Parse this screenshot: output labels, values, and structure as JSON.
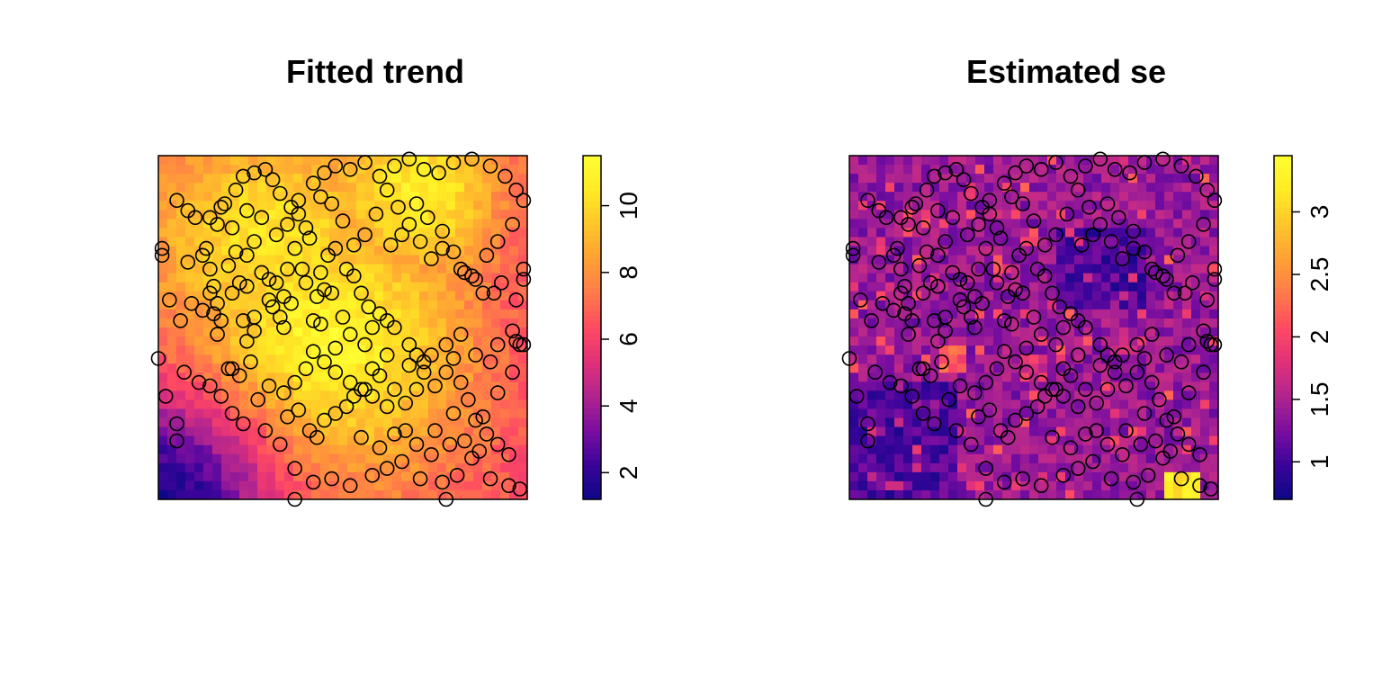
{
  "chart_data": [
    {
      "type": "heatmap",
      "title": "Fitted trend",
      "palette": [
        "#0D0887",
        "#3A049A",
        "#7A0EA0",
        "#B0258F",
        "#E0317A",
        "#FF4A62",
        "#FF7A4A",
        "#FFA035",
        "#FFC52A",
        "#FFEA24",
        "#FFFF33"
      ],
      "grid": false,
      "axes_visible": false,
      "legend": {
        "position": "right",
        "range": [
          1.2,
          11.5
        ],
        "ticks": [
          {
            "value": 2,
            "label": "2"
          },
          {
            "value": 4,
            "label": "4"
          },
          {
            "value": 6,
            "label": "6"
          },
          {
            "value": 8,
            "label": "8"
          },
          {
            "value": 10,
            "label": "10"
          }
        ]
      },
      "surface": {
        "description": "smooth trend: high (yellow) in centre, low (blue) in lower-left corner, moderate magenta on right",
        "peaks": [
          {
            "x": 0.45,
            "y": 0.45,
            "value": 11.2,
            "spread": 0.28
          },
          {
            "x": 0.3,
            "y": 0.75,
            "value": 10.4,
            "spread": 0.25
          },
          {
            "x": 0.7,
            "y": 0.9,
            "value": 10.6,
            "spread": 0.2
          }
        ],
        "base_value": 6.5,
        "low_corner": {
          "x": 0.0,
          "y": 0.0,
          "value": 1.5,
          "spread": 0.22
        },
        "right_edge_value": 6.0
      }
    },
    {
      "type": "heatmap",
      "title": "Estimated se",
      "palette": [
        "#0D0887",
        "#3A049A",
        "#7A0EA0",
        "#B0258F",
        "#E0317A",
        "#FF4A62",
        "#FF7A4A",
        "#FFA035",
        "#FFC52A",
        "#FFEA24",
        "#FFFF33"
      ],
      "grid": false,
      "axes_visible": false,
      "legend": {
        "position": "right",
        "range": [
          0.7,
          3.45
        ],
        "ticks": [
          {
            "value": 1,
            "label": "1"
          },
          {
            "value": 1.5,
            "label": "1.5"
          },
          {
            "value": 2,
            "label": "2"
          },
          {
            "value": 2.5,
            "label": "2.5"
          },
          {
            "value": 3,
            "label": "3"
          }
        ]
      },
      "surface": {
        "description": "mostly blue/purple (1-1.6) with scattered magenta patches near 2, yellow patch bottom-right",
        "base_value": 1.4,
        "hot_spots": [
          {
            "x": 0.9,
            "y": 0.03,
            "value": 3.4
          },
          {
            "x": 0.28,
            "y": 0.42,
            "value": 2.4
          },
          {
            "x": 0.5,
            "y": 0.38,
            "value": 2.0
          },
          {
            "x": 0.75,
            "y": 0.45,
            "value": 1.9
          }
        ]
      }
    }
  ],
  "points": [
    [
      0.01,
      0.73
    ],
    [
      0.01,
      0.71
    ],
    [
      0.0,
      0.41
    ],
    [
      0.02,
      0.3
    ],
    [
      0.05,
      0.22
    ],
    [
      0.05,
      0.17
    ],
    [
      0.05,
      0.87
    ],
    [
      0.08,
      0.84
    ],
    [
      0.1,
      0.82
    ],
    [
      0.14,
      0.82
    ],
    [
      0.17,
      0.85
    ],
    [
      0.08,
      0.69
    ],
    [
      0.12,
      0.71
    ],
    [
      0.13,
      0.73
    ],
    [
      0.14,
      0.67
    ],
    [
      0.15,
      0.62
    ],
    [
      0.14,
      0.6
    ],
    [
      0.15,
      0.54
    ],
    [
      0.17,
      0.52
    ],
    [
      0.16,
      0.48
    ],
    [
      0.19,
      0.38
    ],
    [
      0.2,
      0.38
    ],
    [
      0.17,
      0.3
    ],
    [
      0.2,
      0.25
    ],
    [
      0.23,
      0.22
    ],
    [
      0.11,
      0.34
    ],
    [
      0.14,
      0.33
    ],
    [
      0.2,
      0.6
    ],
    [
      0.23,
      0.52
    ],
    [
      0.24,
      0.46
    ],
    [
      0.26,
      0.49
    ],
    [
      0.26,
      0.53
    ],
    [
      0.24,
      0.62
    ],
    [
      0.22,
      0.63
    ],
    [
      0.19,
      0.68
    ],
    [
      0.21,
      0.72
    ],
    [
      0.24,
      0.71
    ],
    [
      0.26,
      0.75
    ],
    [
      0.28,
      0.66
    ],
    [
      0.3,
      0.64
    ],
    [
      0.3,
      0.58
    ],
    [
      0.31,
      0.56
    ],
    [
      0.33,
      0.53
    ],
    [
      0.34,
      0.5
    ],
    [
      0.32,
      0.63
    ],
    [
      0.34,
      0.59
    ],
    [
      0.35,
      0.67
    ],
    [
      0.37,
      0.73
    ],
    [
      0.39,
      0.67
    ],
    [
      0.4,
      0.63
    ],
    [
      0.42,
      0.52
    ],
    [
      0.44,
      0.51
    ],
    [
      0.43,
      0.59
    ],
    [
      0.45,
      0.61
    ],
    [
      0.46,
      0.71
    ],
    [
      0.48,
      0.73
    ],
    [
      0.51,
      0.67
    ],
    [
      0.53,
      0.65
    ],
    [
      0.55,
      0.6
    ],
    [
      0.57,
      0.56
    ],
    [
      0.6,
      0.54
    ],
    [
      0.62,
      0.52
    ],
    [
      0.64,
      0.5
    ],
    [
      0.68,
      0.45
    ],
    [
      0.68,
      0.39
    ],
    [
      0.7,
      0.42
    ],
    [
      0.72,
      0.4
    ],
    [
      0.74,
      0.42
    ],
    [
      0.78,
      0.45
    ],
    [
      0.82,
      0.48
    ],
    [
      0.86,
      0.42
    ],
    [
      0.9,
      0.4
    ],
    [
      0.92,
      0.45
    ],
    [
      0.96,
      0.49
    ],
    [
      0.97,
      0.46
    ],
    [
      0.98,
      0.45
    ],
    [
      0.96,
      0.37
    ],
    [
      0.92,
      0.31
    ],
    [
      0.88,
      0.24
    ],
    [
      0.8,
      0.25
    ],
    [
      0.75,
      0.2
    ],
    [
      0.67,
      0.2
    ],
    [
      0.62,
      0.27
    ],
    [
      0.58,
      0.3
    ],
    [
      0.55,
      0.32
    ],
    [
      0.52,
      0.34
    ],
    [
      0.48,
      0.37
    ],
    [
      0.45,
      0.4
    ],
    [
      0.42,
      0.43
    ],
    [
      0.4,
      0.38
    ],
    [
      0.37,
      0.34
    ],
    [
      0.34,
      0.31
    ],
    [
      0.3,
      0.33
    ],
    [
      0.27,
      0.29
    ],
    [
      0.29,
      0.2
    ],
    [
      0.33,
      0.16
    ],
    [
      0.35,
      0.24
    ],
    [
      0.38,
      0.26
    ],
    [
      0.41,
      0.2
    ],
    [
      0.43,
      0.18
    ],
    [
      0.45,
      0.23
    ],
    [
      0.48,
      0.25
    ],
    [
      0.51,
      0.27
    ],
    [
      0.53,
      0.3
    ],
    [
      0.56,
      0.32
    ],
    [
      0.58,
      0.38
    ],
    [
      0.6,
      0.36
    ],
    [
      0.62,
      0.42
    ],
    [
      0.64,
      0.32
    ],
    [
      0.67,
      0.28
    ],
    [
      0.7,
      0.32
    ],
    [
      0.72,
      0.37
    ],
    [
      0.75,
      0.33
    ],
    [
      0.78,
      0.37
    ],
    [
      0.8,
      0.41
    ],
    [
      0.82,
      0.34
    ],
    [
      0.84,
      0.29
    ],
    [
      0.86,
      0.23
    ],
    [
      0.89,
      0.19
    ],
    [
      0.92,
      0.16
    ],
    [
      0.95,
      0.13
    ],
    [
      0.98,
      0.03
    ],
    [
      0.37,
      0.09
    ],
    [
      0.42,
      0.05
    ],
    [
      0.47,
      0.06
    ],
    [
      0.52,
      0.04
    ],
    [
      0.58,
      0.07
    ],
    [
      0.62,
      0.09
    ],
    [
      0.66,
      0.11
    ],
    [
      0.71,
      0.06
    ],
    [
      0.77,
      0.05
    ],
    [
      0.81,
      0.07
    ],
    [
      0.85,
      0.12
    ],
    [
      0.9,
      0.06
    ],
    [
      0.95,
      0.04
    ],
    [
      0.55,
      0.18
    ],
    [
      0.6,
      0.15
    ],
    [
      0.64,
      0.19
    ],
    [
      0.7,
      0.16
    ],
    [
      0.74,
      0.13
    ],
    [
      0.79,
      0.16
    ],
    [
      0.83,
      0.17
    ],
    [
      0.87,
      0.14
    ],
    [
      0.5,
      0.53
    ],
    [
      0.47,
      0.6
    ],
    [
      0.44,
      0.66
    ],
    [
      0.41,
      0.76
    ],
    [
      0.4,
      0.79
    ],
    [
      0.38,
      0.83
    ],
    [
      0.36,
      0.85
    ],
    [
      0.33,
      0.89
    ],
    [
      0.31,
      0.93
    ],
    [
      0.29,
      0.96
    ],
    [
      0.26,
      0.95
    ],
    [
      0.23,
      0.94
    ],
    [
      0.21,
      0.9
    ],
    [
      0.18,
      0.86
    ],
    [
      0.16,
      0.8
    ],
    [
      0.2,
      0.79
    ],
    [
      0.24,
      0.84
    ],
    [
      0.28,
      0.82
    ],
    [
      0.32,
      0.77
    ],
    [
      0.35,
      0.8
    ],
    [
      0.38,
      0.87
    ],
    [
      0.42,
      0.92
    ],
    [
      0.45,
      0.95
    ],
    [
      0.48,
      0.97
    ],
    [
      0.52,
      0.96
    ],
    [
      0.56,
      0.98
    ],
    [
      0.6,
      0.94
    ],
    [
      0.64,
      0.97
    ],
    [
      0.68,
      0.99
    ],
    [
      0.72,
      0.96
    ],
    [
      0.76,
      0.95
    ],
    [
      0.8,
      0.98
    ],
    [
      0.85,
      0.99
    ],
    [
      0.9,
      0.97
    ],
    [
      0.94,
      0.94
    ],
    [
      0.97,
      0.9
    ],
    [
      0.99,
      0.87
    ],
    [
      0.96,
      0.8
    ],
    [
      0.92,
      0.75
    ],
    [
      0.89,
      0.71
    ],
    [
      0.86,
      0.64
    ],
    [
      0.83,
      0.66
    ],
    [
      0.8,
      0.72
    ],
    [
      0.77,
      0.73
    ],
    [
      0.74,
      0.7
    ],
    [
      0.71,
      0.75
    ],
    [
      0.68,
      0.8
    ],
    [
      0.65,
      0.85
    ],
    [
      0.62,
      0.9
    ],
    [
      0.59,
      0.83
    ],
    [
      0.56,
      0.77
    ],
    [
      0.53,
      0.74
    ],
    [
      0.5,
      0.81
    ],
    [
      0.47,
      0.86
    ],
    [
      0.44,
      0.88
    ],
    [
      0.36,
      0.57
    ],
    [
      0.56,
      0.45
    ],
    [
      0.52,
      0.48
    ],
    [
      0.58,
      0.5
    ],
    [
      0.48,
      0.44
    ],
    [
      0.25,
      0.4
    ],
    [
      0.22,
      0.36
    ],
    [
      0.07,
      0.37
    ],
    [
      0.03,
      0.58
    ],
    [
      0.06,
      0.52
    ],
    [
      0.09,
      0.57
    ],
    [
      0.12,
      0.55
    ],
    [
      0.16,
      0.57
    ],
    [
      0.99,
      0.67
    ],
    [
      0.99,
      0.64
    ],
    [
      0.99,
      0.45
    ],
    [
      0.97,
      0.58
    ],
    [
      0.93,
      0.63
    ],
    [
      0.91,
      0.6
    ],
    [
      0.88,
      0.6
    ],
    [
      0.85,
      0.65
    ],
    [
      0.82,
      0.67
    ],
    [
      0.77,
      0.78
    ],
    [
      0.73,
      0.82
    ],
    [
      0.7,
      0.86
    ],
    [
      0.66,
      0.77
    ],
    [
      0.63,
      0.74
    ],
    [
      0.37,
      0.0
    ],
    [
      0.78,
      0.0
    ]
  ]
}
